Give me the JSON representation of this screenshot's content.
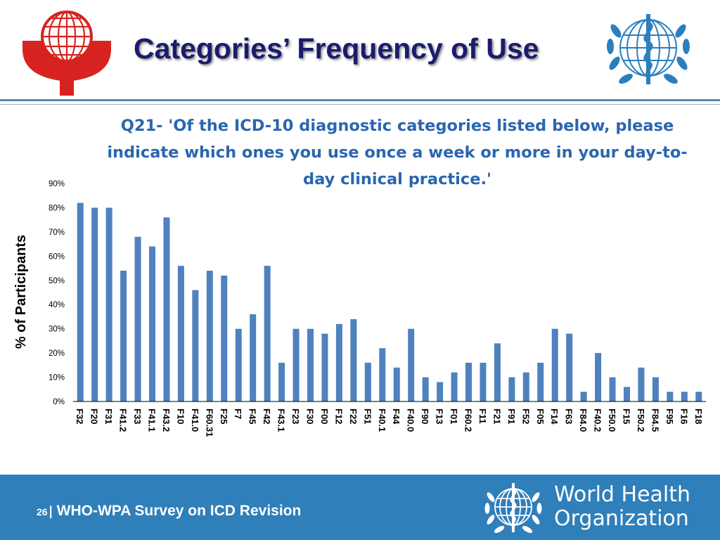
{
  "header": {
    "title": "Categories’ Frequency of Use",
    "left_logo": "wpa-logo",
    "right_logo": "who-emblem"
  },
  "question": "Q21- 'Of the ICD-10 diagnostic categories listed below, please indicate which ones you use once a week or more in your day-to-day clinical practice.'",
  "chart_data": {
    "type": "bar",
    "title": "",
    "xlabel": "",
    "ylabel": "% of Participants",
    "ylim": [
      0,
      90
    ],
    "yticks": [
      "0%",
      "10%",
      "20%",
      "30%",
      "40%",
      "50%",
      "60%",
      "70%",
      "80%",
      "90%"
    ],
    "categories": [
      "F32",
      "F20",
      "F31",
      "F41.2",
      "F33",
      "F41.1",
      "F43.2",
      "F10",
      "F41.0",
      "F60.31",
      "F25",
      "F7",
      "F45",
      "F42",
      "F43.1",
      "F23",
      "F30",
      "F00",
      "F12",
      "F22",
      "F51",
      "F40.1",
      "F44",
      "F40.0",
      "F90",
      "F13",
      "F01",
      "F60.2",
      "F11",
      "F21",
      "F91",
      "F52",
      "F05",
      "F14",
      "F63",
      "F84.0",
      "F40.2",
      "F50.0",
      "F15",
      "F50.2",
      "F84.5",
      "F95",
      "F16",
      "F18"
    ],
    "values": [
      82,
      80,
      80,
      54,
      68,
      64,
      76,
      56,
      46,
      54,
      52,
      30,
      36,
      56,
      16,
      30,
      30,
      28,
      32,
      34,
      16,
      22,
      14,
      30,
      10,
      8,
      12,
      16,
      16,
      24,
      10,
      12,
      16,
      30,
      28,
      4,
      20,
      10,
      6,
      14,
      10,
      4,
      4,
      4
    ],
    "bar_color": "#4f81bd",
    "grid": false,
    "legend": "none"
  },
  "footer": {
    "page_number": "26",
    "separator": "|",
    "survey_title": "WHO-WPA Survey on ICD Revision",
    "org_line1": "World Health",
    "org_line2": "Organization",
    "background": "#2f7fba"
  }
}
